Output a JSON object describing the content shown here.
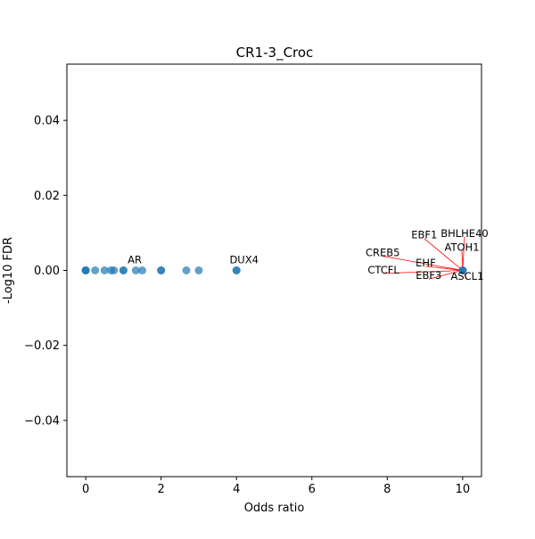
{
  "chart_data": {
    "type": "scatter",
    "title": "CR1-3_Croc",
    "xlabel": "Odds ratio",
    "ylabel": "-Log10 FDR",
    "xlim": [
      -0.5,
      10.5
    ],
    "ylim": [
      -0.055,
      0.055
    ],
    "x_ticks": [
      0,
      2,
      4,
      6,
      8,
      10
    ],
    "y_ticks": [
      -0.04,
      -0.02,
      0.0,
      0.02,
      0.04
    ],
    "x_tick_labels": [
      "0",
      "2",
      "4",
      "6",
      "8",
      "10"
    ],
    "y_tick_labels": [
      "−0.04",
      "−0.02",
      "0.00",
      "0.02",
      "0.04"
    ],
    "grid": false,
    "point_color": "#1f77b4",
    "annotation_line_color": "#ff0000",
    "points": [
      {
        "x": 0.0,
        "y": 0.0
      },
      {
        "x": 0.0,
        "y": 0.0
      },
      {
        "x": 0.0,
        "y": 0.0
      },
      {
        "x": 0.25,
        "y": 0.0
      },
      {
        "x": 0.5,
        "y": 0.0
      },
      {
        "x": 0.67,
        "y": 0.0
      },
      {
        "x": 0.75,
        "y": 0.0
      },
      {
        "x": 1.0,
        "y": 0.0
      },
      {
        "x": 1.0,
        "y": 0.0
      },
      {
        "x": 1.33,
        "y": 0.0
      },
      {
        "x": 1.5,
        "y": 0.0
      },
      {
        "x": 2.0,
        "y": 0.0
      },
      {
        "x": 2.0,
        "y": 0.0
      },
      {
        "x": 2.67,
        "y": 0.0
      },
      {
        "x": 3.0,
        "y": 0.0
      },
      {
        "x": 4.0,
        "y": 0.0
      },
      {
        "x": 4.0,
        "y": 0.0
      },
      {
        "x": 10.0,
        "y": 0.0
      },
      {
        "x": 10.0,
        "y": 0.0
      },
      {
        "x": 10.0,
        "y": 0.0
      }
    ],
    "annotations": [
      {
        "label": "AR",
        "x": 1.0,
        "y": 0.0,
        "text_x": 1.3,
        "text_y": 0.0019,
        "leader": false
      },
      {
        "label": "DUX4",
        "x": 4.0,
        "y": 0.0,
        "text_x": 4.2,
        "text_y": 0.0019,
        "leader": false
      },
      {
        "label": "BHLHE40",
        "x": 10.0,
        "y": 0.0,
        "text_x": 10.05,
        "text_y": 0.0089,
        "leader": true
      },
      {
        "label": "EBF1",
        "x": 10.0,
        "y": 0.0,
        "text_x": 8.98,
        "text_y": 0.0085,
        "leader": true
      },
      {
        "label": "ATOH1",
        "x": 10.0,
        "y": 0.0,
        "text_x": 9.98,
        "text_y": 0.0052,
        "leader": true
      },
      {
        "label": "CREB5",
        "x": 10.0,
        "y": 0.0,
        "text_x": 7.88,
        "text_y": 0.0038,
        "leader": true
      },
      {
        "label": "EHF",
        "x": 10.0,
        "y": 0.0,
        "text_x": 9.02,
        "text_y": 0.0011,
        "leader": true
      },
      {
        "label": "CTCFL",
        "x": 10.0,
        "y": 0.0,
        "text_x": 7.9,
        "text_y": -0.0008,
        "leader": true
      },
      {
        "label": "EBF3",
        "x": 10.0,
        "y": 0.0,
        "text_x": 9.1,
        "text_y": -0.0023,
        "leader": true
      },
      {
        "label": "ASCL1",
        "x": 10.0,
        "y": 0.0,
        "text_x": 10.12,
        "text_y": -0.0025,
        "leader": true
      }
    ]
  }
}
